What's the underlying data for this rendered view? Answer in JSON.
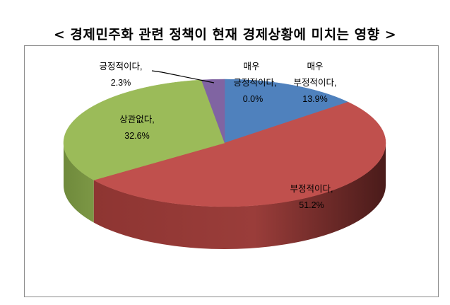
{
  "chart_data": {
    "type": "pie",
    "title": "< 경제민주화 관련 정책이 현재 경제상황에 미치는 영향 >",
    "slices": [
      {
        "label": "매우 부정적이다",
        "value": 13.9,
        "value_label": "13.9%",
        "color": "#4f81bd"
      },
      {
        "label": "부정적이다",
        "value": 51.2,
        "value_label": "51.2%",
        "color": "#c0504d"
      },
      {
        "label": "상관없다",
        "value": 32.6,
        "value_label": "32.6%",
        "color": "#9bbb59"
      },
      {
        "label": "긍정적이다",
        "value": 2.3,
        "value_label": "2.3%",
        "color": "#8064a2"
      },
      {
        "label": "매우 긍정적이다",
        "value": 0.0,
        "value_label": "0.0%",
        "color": "#4bacc6"
      }
    ],
    "legend": "none",
    "style": "3d-pie"
  },
  "labels": {
    "very_negative": {
      "line1": "매우",
      "line2": "부정적이다,",
      "line3": "13.9%"
    },
    "negative": {
      "line1": "부정적이다,",
      "line2": "51.2%"
    },
    "neutral": {
      "line1": "상관없다,",
      "line2": "32.6%"
    },
    "positive": {
      "line1": "긍정적이다,",
      "line2": "2.3%"
    },
    "very_positive": {
      "line1": "매우",
      "line2": "긍정적이다,",
      "line3": "0.0%"
    }
  }
}
